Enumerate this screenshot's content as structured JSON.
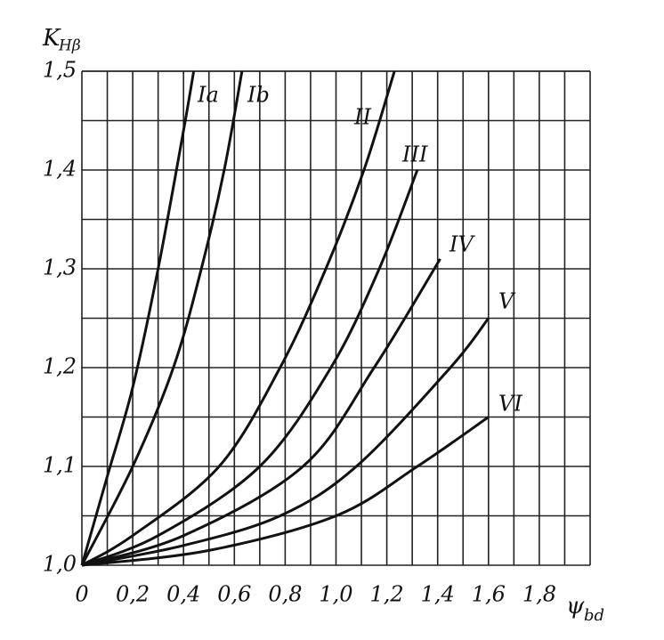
{
  "chart_data": {
    "type": "line",
    "ylabel": "K",
    "ylabel_sub": "Hβ",
    "xlabel": "ψ",
    "xlabel_sub": "bd",
    "xlim": [
      0,
      2.0
    ],
    "ylim": [
      1.0,
      1.5
    ],
    "xticks": [
      0,
      {
        "value": 0.2,
        "label": "0,2"
      },
      {
        "value": 0.4,
        "label": "0,4"
      },
      {
        "value": 0.6,
        "label": "0,6"
      },
      {
        "value": 0.8,
        "label": "0,8"
      },
      {
        "value": 1.0,
        "label": "1,0"
      },
      {
        "value": 1.2,
        "label": "1,2"
      },
      {
        "value": 1.4,
        "label": "1,4"
      },
      {
        "value": 1.6,
        "label": "1,6"
      },
      {
        "value": 1.8,
        "label": "1,8"
      }
    ],
    "yticks": [
      {
        "value": 1.0,
        "label": "1,0"
      },
      {
        "value": 1.1,
        "label": "1,1"
      },
      {
        "value": 1.2,
        "label": "1,2"
      },
      {
        "value": 1.3,
        "label": "1,3"
      },
      {
        "value": 1.4,
        "label": "1,4"
      },
      {
        "value": 1.5,
        "label": "1,5"
      }
    ],
    "xminorticks": [
      0.1,
      0.3,
      0.5,
      0.7,
      0.9,
      1.1,
      1.3,
      1.5,
      1.7,
      1.9
    ],
    "yminorticks": [
      1.05,
      1.15,
      1.25,
      1.35,
      1.45
    ],
    "grid": true,
    "color": "#111111",
    "series": [
      {
        "name": "Ia",
        "x": [
          0,
          0.1,
          0.2,
          0.3,
          0.4,
          0.44
        ],
        "values": [
          1.0,
          1.09,
          1.18,
          1.3,
          1.44,
          1.5
        ]
      },
      {
        "name": "Ib",
        "x": [
          0,
          0.2,
          0.36,
          0.47,
          0.56,
          0.63
        ],
        "values": [
          1.0,
          1.1,
          1.2,
          1.3,
          1.4,
          1.5
        ]
      },
      {
        "name": "II",
        "x": [
          0,
          0.2,
          0.54,
          0.78,
          0.96,
          1.11,
          1.23
        ],
        "values": [
          1.0,
          1.03,
          1.1,
          1.2,
          1.3,
          1.4,
          1.5
        ]
      },
      {
        "name": "III",
        "x": [
          0,
          0.3,
          0.7,
          0.98,
          1.17,
          1.32
        ],
        "values": [
          1.0,
          1.03,
          1.1,
          1.2,
          1.3,
          1.4
        ]
      },
      {
        "name": "IV",
        "x": [
          0,
          0.4,
          0.87,
          1.15,
          1.41
        ],
        "values": [
          1.0,
          1.03,
          1.1,
          1.2,
          1.31
        ]
      },
      {
        "name": "V",
        "x": [
          0,
          0.4,
          0.78,
          1.08,
          1.45,
          1.6
        ],
        "values": [
          1.0,
          1.02,
          1.05,
          1.1,
          1.2,
          1.25
        ]
      },
      {
        "name": "VI",
        "x": [
          0,
          0.5,
          1.0,
          1.32,
          1.6
        ],
        "values": [
          1.0,
          1.015,
          1.05,
          1.1,
          1.15
        ]
      }
    ]
  }
}
